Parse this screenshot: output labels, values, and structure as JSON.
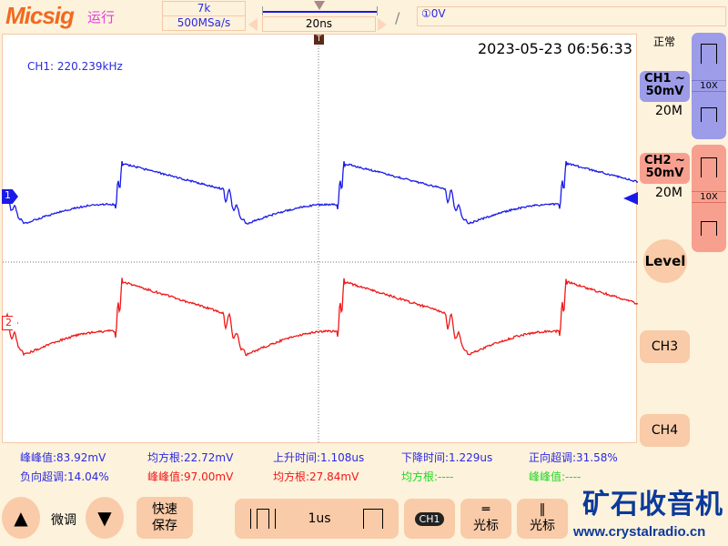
{
  "header": {
    "logo": "Micsig",
    "run_state": "运行",
    "memory_depth": "7k",
    "sample_rate": "500MSa/s",
    "timebase": "20ns",
    "trigger_edge_icon": "rising-edge",
    "trigger_info": "①0V"
  },
  "screen": {
    "datetime": "2023-05-23 06:56:33",
    "frequency": "CH1: 220.239kHz",
    "ch1_marker": "1",
    "ch2_marker": "2",
    "colors": {
      "ch1": "#1a1ae8",
      "ch2": "#f01818",
      "ch3": "#20d820"
    }
  },
  "measurements": [
    {
      "text": "峰峰值:83.92mV",
      "color": "#2a2ae0"
    },
    {
      "text": "均方根:22.72mV",
      "color": "#2a2ae0"
    },
    {
      "text": "上升时间:1.108us",
      "color": "#2a2ae0"
    },
    {
      "text": "下降时间:1.229us",
      "color": "#2a2ae0"
    },
    {
      "text": "正向超调:31.58%",
      "color": "#2a2ae0"
    },
    {
      "text": "负向超调:14.04%",
      "color": "#2a2ae0"
    },
    {
      "text": "峰峰值:97.00mV",
      "color": "#f01818"
    },
    {
      "text": "均方根:27.84mV",
      "color": "#f01818"
    },
    {
      "text": "均方根:----",
      "color": "#20d820"
    },
    {
      "text": "峰峰值:----",
      "color": "#20d820"
    }
  ],
  "side": {
    "mode": "正常",
    "ch1_label": "CH1 ~",
    "ch1_scale": "50mV",
    "ch1_bw": "20M",
    "ch1_probe": "10X",
    "ch2_label": "CH2 ~",
    "ch2_scale": "50mV",
    "ch2_bw": "20M",
    "ch2_probe": "10X",
    "level": "Level",
    "ch3": "CH3",
    "ch4": "CH4"
  },
  "bottom": {
    "fine_adjust": "微调",
    "quick_save_1": "快速",
    "quick_save_2": "保存",
    "time_value": "1us",
    "ch_select": "CH1",
    "cursor1": "光标",
    "cursor2": "光标"
  },
  "watermark": {
    "text": "矿石收音机",
    "url": "www.crystalradio.cn"
  }
}
